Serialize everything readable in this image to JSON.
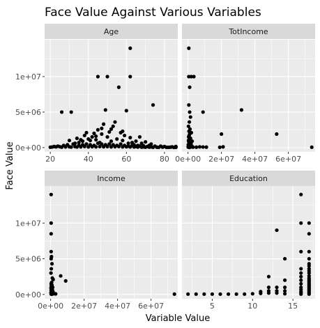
{
  "chart_data": {
    "type": "scatter",
    "title": "Face Value Against Various Variables",
    "xlabel": "Variable Value",
    "ylabel": "Face Value",
    "ylim": [
      -600000,
      15200000
    ],
    "y_ticks": [
      0,
      5000000,
      10000000
    ],
    "y_tick_labels": [
      "0e+00",
      "5e+06",
      "1e+07"
    ],
    "grid": true,
    "legend": "none",
    "panels": [
      {
        "name": "Age",
        "xlim": [
          17,
          87
        ],
        "x_ticks": [
          20,
          40,
          60,
          80
        ],
        "x_tick_labels": [
          "20",
          "40",
          "60",
          "80"
        ],
        "x_minor": [
          30,
          50,
          70
        ],
        "points": [
          [
            26,
            5000000
          ],
          [
            31,
            5000000
          ],
          [
            45,
            10000000
          ],
          [
            50,
            10000000
          ],
          [
            62,
            10000000
          ],
          [
            62,
            14000000
          ],
          [
            56,
            8500000
          ],
          [
            74,
            6000000
          ],
          [
            60,
            5200000
          ],
          [
            49,
            5300000
          ],
          [
            53,
            3000000
          ],
          [
            58,
            2300000
          ],
          [
            44,
            1600000
          ],
          [
            41,
            1000000
          ],
          [
            62,
            1400000
          ],
          [
            34,
            1300000
          ],
          [
            30,
            1000000
          ],
          [
            55,
            1200000
          ],
          [
            47,
            1900000
          ],
          [
            51,
            2200000
          ],
          [
            67,
            1500000
          ],
          [
            48,
            3300000
          ],
          [
            52,
            2600000
          ],
          [
            39,
            2100000
          ],
          [
            45,
            2500000
          ],
          [
            57,
            2100000
          ],
          [
            43,
            2000000
          ],
          [
            50,
            1500000
          ],
          [
            36,
            1100000
          ],
          [
            65,
            900000
          ],
          [
            70,
            800000
          ],
          [
            47,
            2700000
          ],
          [
            42,
            1500000
          ],
          [
            54,
            3600000
          ],
          [
            59,
            1700000
          ],
          [
            38,
            1700000
          ],
          [
            40,
            1200000
          ],
          [
            46,
            700000
          ],
          [
            33,
            600000
          ],
          [
            61,
            600000
          ],
          [
            64,
            400000
          ],
          [
            66,
            300000
          ],
          [
            72,
            300000
          ],
          [
            75,
            200000
          ],
          [
            78,
            200000
          ],
          [
            80,
            150000
          ],
          [
            84,
            100000
          ],
          [
            86,
            150000
          ],
          [
            73,
            500000
          ],
          [
            69,
            250000
          ],
          [
            22,
            150000
          ],
          [
            24,
            200000
          ],
          [
            27,
            300000
          ],
          [
            29,
            400000
          ],
          [
            32,
            500000
          ],
          [
            35,
            300000
          ],
          [
            37,
            400000
          ],
          [
            39,
            500000
          ],
          [
            41,
            400000
          ],
          [
            43,
            300000
          ],
          [
            45,
            600000
          ],
          [
            47,
            500000
          ],
          [
            49,
            400000
          ],
          [
            51,
            500000
          ],
          [
            53,
            400000
          ],
          [
            55,
            300000
          ],
          [
            57,
            500000
          ],
          [
            59,
            300000
          ],
          [
            61,
            200000
          ],
          [
            63,
            300000
          ],
          [
            65,
            150000
          ],
          [
            67,
            200000
          ],
          [
            69,
            100000
          ],
          [
            71,
            150000
          ],
          [
            73,
            100000
          ],
          [
            20,
            50000
          ],
          [
            21,
            80000
          ],
          [
            23,
            100000
          ],
          [
            25,
            120000
          ],
          [
            26,
            60000
          ],
          [
            28,
            90000
          ],
          [
            30,
            110000
          ],
          [
            31,
            70000
          ],
          [
            33,
            130000
          ],
          [
            34,
            80000
          ],
          [
            36,
            100000
          ],
          [
            38,
            150000
          ],
          [
            40,
            90000
          ],
          [
            42,
            120000
          ],
          [
            44,
            100000
          ],
          [
            46,
            140000
          ],
          [
            48,
            110000
          ],
          [
            50,
            130000
          ],
          [
            52,
            100000
          ],
          [
            54,
            120000
          ],
          [
            56,
            140000
          ],
          [
            58,
            100000
          ],
          [
            60,
            110000
          ],
          [
            62,
            90000
          ],
          [
            64,
            80000
          ],
          [
            66,
            70000
          ],
          [
            68,
            60000
          ],
          [
            70,
            50000
          ],
          [
            72,
            60000
          ],
          [
            74,
            40000
          ],
          [
            76,
            50000
          ],
          [
            77,
            30000
          ],
          [
            79,
            60000
          ],
          [
            81,
            40000
          ],
          [
            82,
            30000
          ],
          [
            83,
            50000
          ],
          [
            85,
            20000
          ],
          [
            86,
            40000
          ],
          [
            37,
            900000
          ],
          [
            35,
            700000
          ],
          [
            44,
            1100000
          ],
          [
            52,
            900000
          ],
          [
            58,
            1000000
          ],
          [
            63,
            700000
          ],
          [
            68,
            600000
          ]
        ]
      },
      {
        "name": "TotIncome",
        "xlim": [
          -3600000,
          76000000
        ],
        "x_ticks": [
          0,
          20000000,
          40000000,
          60000000
        ],
        "x_tick_labels": [
          "0e+00",
          "2e+07",
          "4e+07",
          "6e+07"
        ],
        "x_minor": [
          10000000,
          30000000,
          50000000,
          70000000
        ],
        "points": [
          [
            500000,
            14000000
          ],
          [
            500000,
            10000000
          ],
          [
            2000000,
            10000000
          ],
          [
            3500000,
            10000000
          ],
          [
            1000000,
            8500000
          ],
          [
            500000,
            6000000
          ],
          [
            1000000,
            5000000
          ],
          [
            9000000,
            5000000
          ],
          [
            32000000,
            5300000
          ],
          [
            1500000,
            4300000
          ],
          [
            800000,
            3600000
          ],
          [
            300000,
            3000000
          ],
          [
            1200000,
            2600000
          ],
          [
            600000,
            2300000
          ],
          [
            2000000,
            2100000
          ],
          [
            1000000,
            1900000
          ],
          [
            20000000,
            1900000
          ],
          [
            53000000,
            1900000
          ],
          [
            700000,
            1700000
          ],
          [
            400000,
            1500000
          ],
          [
            1500000,
            1300000
          ],
          [
            900000,
            1200000
          ],
          [
            300000,
            1000000
          ],
          [
            2500000,
            900000
          ],
          [
            500000,
            800000
          ],
          [
            1100000,
            700000
          ],
          [
            1800000,
            600000
          ],
          [
            600000,
            500000
          ],
          [
            200000,
            400000
          ],
          [
            1300000,
            300000
          ],
          [
            2200000,
            250000
          ],
          [
            800000,
            200000
          ],
          [
            400000,
            150000
          ],
          [
            100000,
            100000
          ],
          [
            1600000,
            80000
          ],
          [
            3000000,
            60000
          ],
          [
            5000000,
            50000
          ],
          [
            7000000,
            100000
          ],
          [
            9000000,
            80000
          ],
          [
            11000000,
            60000
          ],
          [
            19000000,
            40000
          ],
          [
            21000000,
            100000
          ],
          [
            74000000,
            50000
          ],
          [
            300000,
            50000
          ],
          [
            500000,
            30000
          ],
          [
            1000000,
            20000
          ]
        ]
      },
      {
        "name": "Income",
        "xlim": [
          -3600000,
          76000000
        ],
        "x_ticks": [
          0,
          20000000,
          40000000,
          60000000
        ],
        "x_tick_labels": [
          "0e+00",
          "2e+07",
          "4e+07",
          "6e+07"
        ],
        "x_minor": [
          10000000,
          30000000,
          50000000,
          70000000
        ],
        "points": [
          [
            300000,
            14000000
          ],
          [
            300000,
            10000000
          ],
          [
            300000,
            8500000
          ],
          [
            300000,
            6000000
          ],
          [
            500000,
            5300000
          ],
          [
            300000,
            5000000
          ],
          [
            800000,
            4300000
          ],
          [
            400000,
            3600000
          ],
          [
            200000,
            3000000
          ],
          [
            6000000,
            2600000
          ],
          [
            1000000,
            2300000
          ],
          [
            1500000,
            2100000
          ],
          [
            9000000,
            1900000
          ],
          [
            600000,
            1700000
          ],
          [
            300000,
            1500000
          ],
          [
            800000,
            1300000
          ],
          [
            400000,
            1200000
          ],
          [
            1200000,
            1000000
          ],
          [
            200000,
            900000
          ],
          [
            600000,
            800000
          ],
          [
            1000000,
            700000
          ],
          [
            300000,
            600000
          ],
          [
            500000,
            500000
          ],
          [
            1400000,
            400000
          ],
          [
            800000,
            300000
          ],
          [
            200000,
            250000
          ],
          [
            1100000,
            200000
          ],
          [
            500000,
            150000
          ],
          [
            2000000,
            100000
          ],
          [
            3000000,
            80000
          ],
          [
            300000,
            50000
          ],
          [
            700000,
            30000
          ],
          [
            74000000,
            50000
          ]
        ]
      },
      {
        "name": "Education",
        "xlim": [
          1.25,
          17.75
        ],
        "x_ticks": [
          5,
          10,
          15
        ],
        "x_tick_labels": [
          "5",
          "10",
          "15"
        ],
        "x_minor": [
          2.5,
          7.5,
          12.5,
          17.5
        ],
        "points": [
          [
            2,
            50000
          ],
          [
            3,
            50000
          ],
          [
            4,
            50000
          ],
          [
            5,
            50000
          ],
          [
            6,
            50000
          ],
          [
            7,
            50000
          ],
          [
            8,
            50000
          ],
          [
            9,
            50000
          ],
          [
            10,
            100000
          ],
          [
            11,
            150000
          ],
          [
            11,
            400000
          ],
          [
            12,
            200000
          ],
          [
            12,
            500000
          ],
          [
            12,
            1000000
          ],
          [
            12,
            2500000
          ],
          [
            13,
            9000000
          ],
          [
            13,
            1000000
          ],
          [
            13,
            500000
          ],
          [
            13,
            200000
          ],
          [
            14,
            5000000
          ],
          [
            14,
            2000000
          ],
          [
            14,
            1000000
          ],
          [
            14,
            500000
          ],
          [
            14,
            100000
          ],
          [
            16,
            14000000
          ],
          [
            16,
            10000000
          ],
          [
            16,
            6000000
          ],
          [
            16,
            3600000
          ],
          [
            16,
            3000000
          ],
          [
            16,
            2500000
          ],
          [
            16,
            2000000
          ],
          [
            16,
            1500000
          ],
          [
            16,
            1000000
          ],
          [
            16,
            700000
          ],
          [
            16,
            400000
          ],
          [
            16,
            200000
          ],
          [
            16,
            50000
          ],
          [
            17,
            10000000
          ],
          [
            17,
            8500000
          ],
          [
            17,
            6000000
          ],
          [
            17,
            5000000
          ],
          [
            17,
            4300000
          ],
          [
            17,
            4000000
          ],
          [
            17,
            3600000
          ],
          [
            17,
            3300000
          ],
          [
            17,
            3000000
          ],
          [
            17,
            2600000
          ],
          [
            17,
            2300000
          ],
          [
            17,
            2100000
          ],
          [
            17,
            1900000
          ],
          [
            17,
            1700000
          ],
          [
            17,
            1500000
          ],
          [
            17,
            1300000
          ],
          [
            17,
            1200000
          ],
          [
            17,
            1000000
          ],
          [
            17,
            800000
          ],
          [
            17,
            600000
          ],
          [
            17,
            400000
          ],
          [
            17,
            200000
          ],
          [
            17,
            50000
          ]
        ]
      }
    ]
  }
}
